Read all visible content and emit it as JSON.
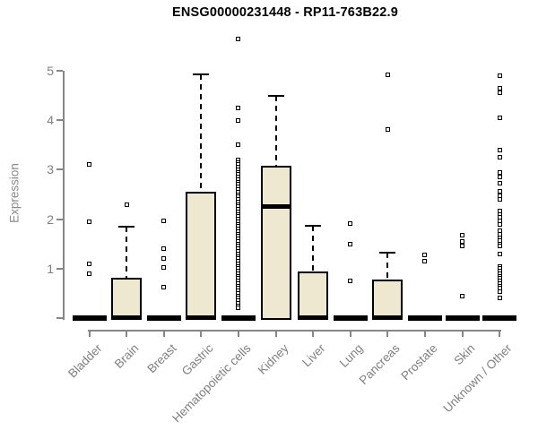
{
  "title": "ENSG00000231448 - RP11-763B22.9",
  "colors": {
    "box_fill": "#EDE8CF",
    "box_border": "#000000",
    "median": "#000000",
    "outlier": "#000000",
    "axis": "#878787",
    "tick_label": "#7f7f7f",
    "title": "#000000",
    "background": "#ffffff"
  },
  "chart_data": {
    "type": "boxplot",
    "title": "ENSG00000231448 - RP11-763B22.9",
    "xlabel": "",
    "ylabel": "Expression",
    "ylim": [
      0,
      5
    ],
    "yticks": [
      0,
      1,
      2,
      3,
      4,
      5
    ],
    "grid": false,
    "legend": "none",
    "categories": [
      "Bladder",
      "Brain",
      "Breast",
      "Gastric",
      "Hematopoietic cells",
      "Kidney",
      "Liver",
      "Lung",
      "Pancreas",
      "Prostate",
      "Skin",
      "Unknown / Other"
    ],
    "series": [
      {
        "category": "Bladder",
        "q1": 0,
        "median": 0,
        "q3": 0,
        "whisker_low": 0,
        "whisker_high": 0,
        "outliers": [
          0.9,
          1.1,
          1.95,
          3.1
        ]
      },
      {
        "category": "Brain",
        "q1": 0,
        "median": 0,
        "q3": 0.82,
        "whisker_low": 0,
        "whisker_high": 1.85,
        "outliers": [
          2.3
        ]
      },
      {
        "category": "Breast",
        "q1": 0,
        "median": 0,
        "q3": 0,
        "whisker_low": 0,
        "whisker_high": 0,
        "outliers": [
          0.62,
          1.02,
          1.2,
          1.4,
          1.97
        ]
      },
      {
        "category": "Gastric",
        "q1": 0,
        "median": 0,
        "q3": 2.55,
        "whisker_low": 0,
        "whisker_high": 4.92,
        "outliers": []
      },
      {
        "category": "Hematopoietic cells",
        "q1": 0,
        "median": 0,
        "q3": 0,
        "whisker_low": 0,
        "whisker_high": 0,
        "outliers": [
          5.65,
          4.25,
          4.0,
          3.5,
          3.2,
          3.15,
          3.1,
          3.05,
          3.0,
          2.95,
          2.9,
          2.85,
          2.8,
          2.75,
          2.7,
          2.65,
          2.6,
          2.55,
          2.5,
          2.45,
          2.4,
          2.35,
          2.3,
          2.25,
          2.2,
          2.15,
          2.1,
          2.05,
          2.0,
          1.95,
          1.9,
          1.85,
          1.8,
          1.75,
          1.7,
          1.65,
          1.6,
          1.55,
          1.5,
          1.45,
          1.4,
          1.35,
          1.3,
          1.25,
          1.2,
          1.15,
          1.1,
          1.05,
          1.0,
          0.95,
          0.9,
          0.85,
          0.8,
          0.75,
          0.7,
          0.65,
          0.6,
          0.55,
          0.5,
          0.45,
          0.4,
          0.35,
          0.3,
          0.25,
          0.2
        ]
      },
      {
        "category": "Kidney",
        "q1": 0,
        "median": 2.25,
        "q3": 3.08,
        "whisker_low": 0,
        "whisker_high": 4.5,
        "outliers": []
      },
      {
        "category": "Liver",
        "q1": 0,
        "median": 0,
        "q3": 0.95,
        "whisker_low": 0,
        "whisker_high": 1.87,
        "outliers": []
      },
      {
        "category": "Lung",
        "q1": 0,
        "median": 0,
        "q3": 0,
        "whisker_low": 0,
        "whisker_high": 0,
        "outliers": [
          0.75,
          1.5,
          1.92
        ]
      },
      {
        "category": "Pancreas",
        "q1": 0,
        "median": 0,
        "q3": 0.78,
        "whisker_low": 0,
        "whisker_high": 1.33,
        "outliers": [
          3.82,
          4.92
        ]
      },
      {
        "category": "Prostate",
        "q1": 0,
        "median": 0,
        "q3": 0,
        "whisker_low": 0,
        "whisker_high": 0,
        "outliers": [
          1.15,
          1.27
        ]
      },
      {
        "category": "Skin",
        "q1": 0,
        "median": 0,
        "q3": 0,
        "whisker_low": 0,
        "whisker_high": 0,
        "outliers": [
          0.45,
          1.45,
          1.55,
          1.67
        ]
      },
      {
        "category": "Unknown / Other",
        "q1": 0,
        "median": 0,
        "q3": 0,
        "whisker_low": 0,
        "whisker_high": 0,
        "outliers": [
          4.9,
          4.65,
          4.55,
          4.05,
          3.4,
          3.25,
          2.95,
          2.85,
          2.72,
          2.57,
          2.48,
          2.4,
          2.17,
          2.1,
          2.03,
          1.97,
          1.9,
          1.76,
          1.7,
          1.63,
          1.57,
          1.5,
          1.45,
          1.3,
          1.05,
          1.0,
          0.95,
          0.9,
          0.85,
          0.8,
          0.75,
          0.7,
          0.65,
          0.6,
          0.54,
          0.4
        ]
      }
    ]
  }
}
